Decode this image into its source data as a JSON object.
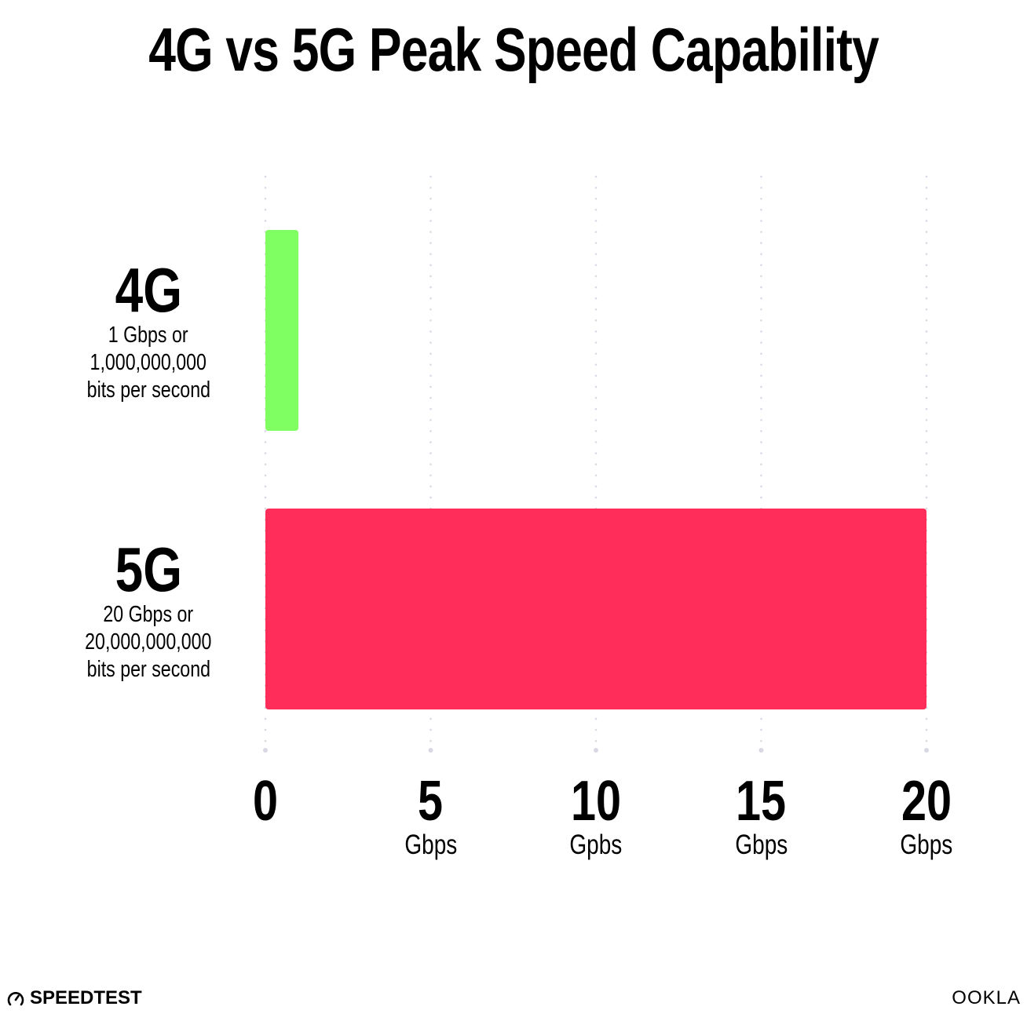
{
  "chart_data": {
    "type": "bar",
    "orientation": "horizontal",
    "title": "4G vs 5G Peak Speed Capability",
    "categories": [
      "4G",
      "5G"
    ],
    "category_notes": [
      [
        "1 Gbps or",
        "1,000,000,000",
        "bits per second"
      ],
      [
        "20 Gbps or",
        "20,000,000,000",
        "bits per second"
      ]
    ],
    "values": [
      1,
      20
    ],
    "colors": [
      "#80ff63",
      "#ff2d5a"
    ],
    "xlim": [
      0,
      20
    ],
    "ticks": [
      {
        "value": 0,
        "label": "0",
        "unit": ""
      },
      {
        "value": 5,
        "label": "5",
        "unit": "Gbps"
      },
      {
        "value": 10,
        "label": "10",
        "unit": "Gpbs"
      },
      {
        "value": 15,
        "label": "15",
        "unit": "Gbps"
      },
      {
        "value": 20,
        "label": "20",
        "unit": "Gbps"
      }
    ],
    "grid": true,
    "grid_color": "#d8d8e4"
  },
  "logos": {
    "left": "SPEEDTEST",
    "right": "OOKLA"
  }
}
